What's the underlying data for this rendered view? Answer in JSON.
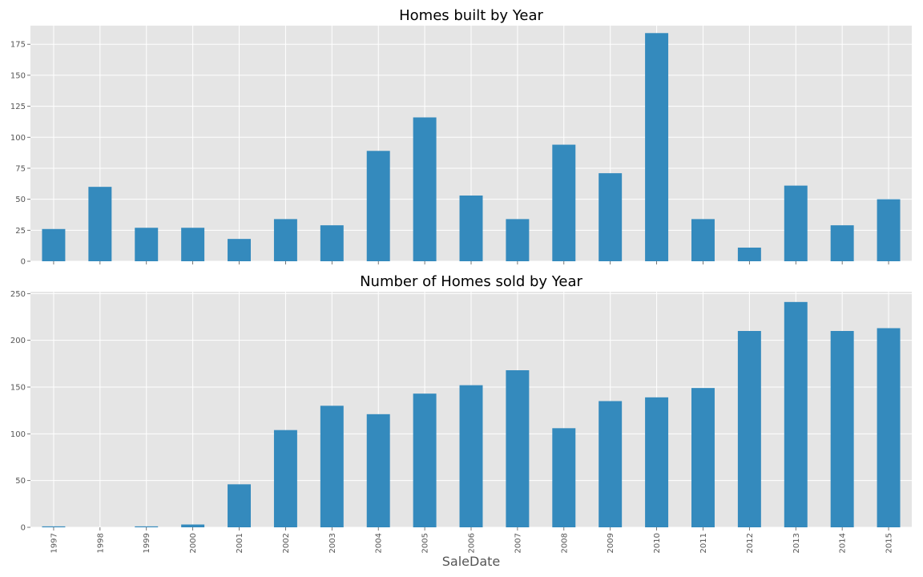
{
  "chart_data": [
    {
      "type": "bar",
      "title": "Homes built by Year",
      "xlabel": "",
      "ylabel": "",
      "categories": [
        "1997",
        "1998",
        "1999",
        "2000",
        "2001",
        "2002",
        "2003",
        "2004",
        "2005",
        "2006",
        "2007",
        "2008",
        "2009",
        "2010",
        "2011",
        "2012",
        "2013",
        "2014",
        "2015"
      ],
      "values": [
        26,
        60,
        27,
        27,
        18,
        34,
        29,
        89,
        116,
        53,
        34,
        94,
        71,
        184,
        34,
        11,
        61,
        29,
        50
      ],
      "ylim": [
        0,
        190
      ],
      "yticks": [
        0,
        25,
        50,
        75,
        100,
        125,
        150,
        175
      ],
      "grid": true,
      "bar_color": "#348abd",
      "background_color": "#e5e5e5",
      "show_x_tick_labels": false
    },
    {
      "type": "bar",
      "title": "Number of Homes sold by Year",
      "xlabel": "SaleDate",
      "ylabel": "",
      "categories": [
        "1997",
        "1998",
        "1999",
        "2000",
        "2001",
        "2002",
        "2003",
        "2004",
        "2005",
        "2006",
        "2007",
        "2008",
        "2009",
        "2010",
        "2011",
        "2012",
        "2013",
        "2014",
        "2015"
      ],
      "values": [
        1,
        0,
        1,
        3,
        46,
        104,
        130,
        121,
        143,
        152,
        168,
        106,
        135,
        139,
        149,
        210,
        241,
        210,
        213
      ],
      "ylim": [
        0,
        252
      ],
      "yticks": [
        0,
        50,
        100,
        150,
        200,
        250
      ],
      "grid": true,
      "bar_color": "#348abd",
      "background_color": "#e5e5e5",
      "show_x_tick_labels": true
    }
  ]
}
